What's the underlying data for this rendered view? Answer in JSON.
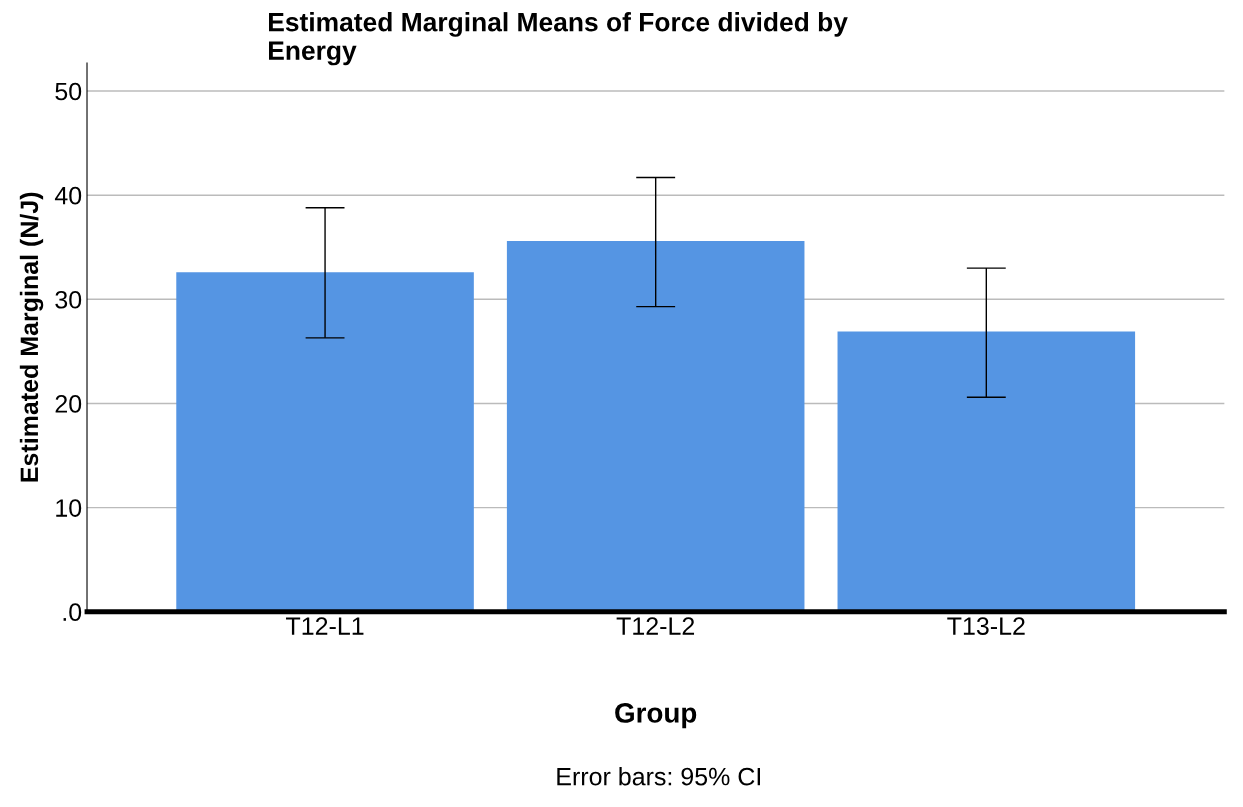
{
  "chart_data": {
    "type": "bar",
    "title": "Estimated Marginal Means of Force divided by\nEnergy",
    "xlabel": "Group",
    "ylabel": "Estimated Marginal (N/J)",
    "categories": [
      "T12-L1",
      "T12-L2",
      "T13-L2"
    ],
    "values": [
      32.6,
      35.6,
      26.9
    ],
    "errors": [
      [
        26.3,
        38.8
      ],
      [
        29.3,
        41.7
      ],
      [
        20.6,
        33.0
      ]
    ],
    "color": "#5595e3",
    "ylim": [
      0,
      52.7
    ],
    "yticks": [
      {
        "value": 0,
        "label": ".0"
      },
      10,
      20,
      30,
      40,
      50
    ],
    "grid": "y",
    "annotations": [
      "Error bars: 95% CI"
    ]
  }
}
